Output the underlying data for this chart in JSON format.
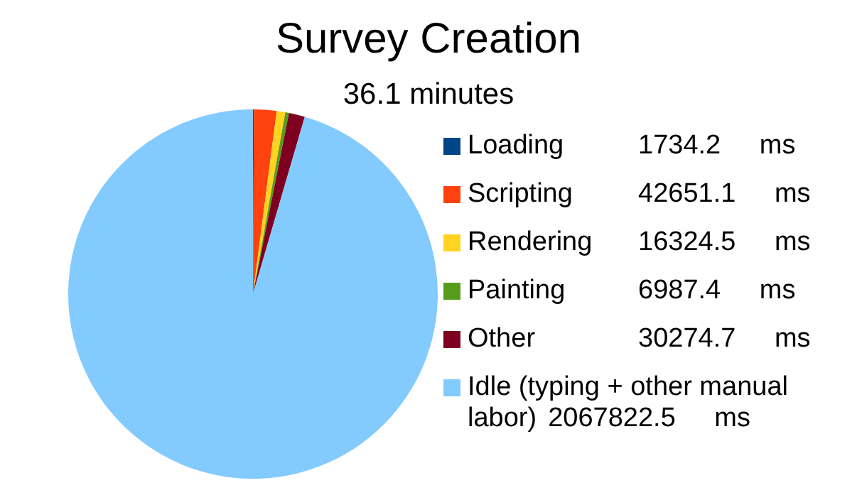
{
  "chart_data": {
    "type": "pie",
    "title": "Survey Creation",
    "subtitle": "36.1 minutes",
    "categories": [
      "Loading",
      "Scripting",
      "Rendering",
      "Painting",
      "Other",
      "Idle (typing + other manual labor)"
    ],
    "values": [
      1734.2,
      42651.1,
      16324.5,
      6987.4,
      30274.7,
      2067822.5
    ],
    "value_labels": [
      "1734.2 ms",
      "42651.1 ms",
      "16324.5 ms",
      "6987.4 ms",
      "30274.7 ms",
      "2067822.5 ms"
    ],
    "colors": [
      "#004586",
      "#ff420e",
      "#ffd320",
      "#579d1c",
      "#7e0021",
      "#83caff"
    ],
    "legend": "right"
  }
}
